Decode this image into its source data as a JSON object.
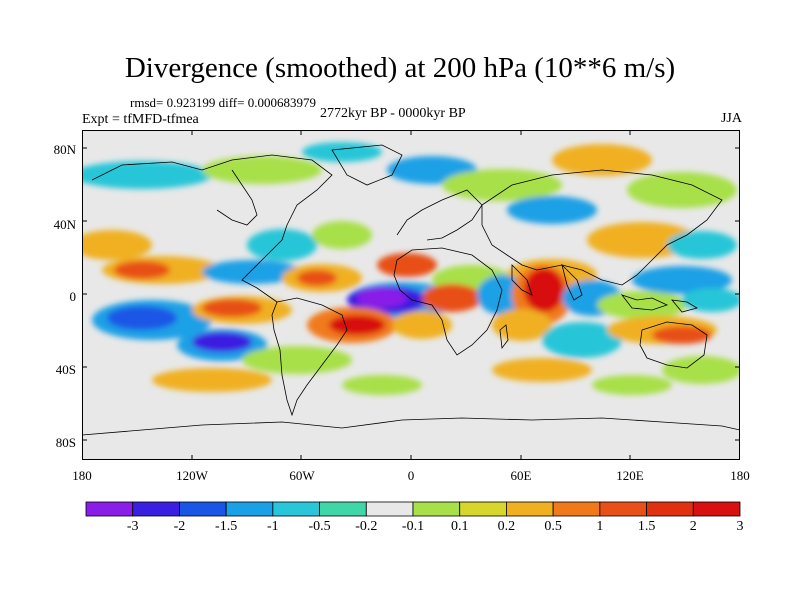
{
  "title": "Divergence (smoothed) at 200 hPa (10**6 m/s)",
  "stats": "rmsd= 0.923199 diff= 0.000683979",
  "experiment": "Expt = tfMFD-tfmea",
  "period": "2772kyr BP - 0000kyr BP",
  "season": "JJA",
  "lat_axis": [
    "80N",
    "40N",
    "0",
    "40S",
    "80S"
  ],
  "lon_axis": [
    "180",
    "120W",
    "60W",
    "0",
    "60E",
    "120E",
    "180"
  ],
  "colorbar": {
    "labels": [
      "-3",
      "-2",
      "-1.5",
      "-1",
      "-0.5",
      "-0.2",
      "-0.1",
      "0.1",
      "0.2",
      "0.5",
      "1",
      "1.5",
      "2",
      "3"
    ],
    "colors": [
      "#8a1ee8",
      "#3b1fe0",
      "#1a56e6",
      "#1aa0e6",
      "#28c6d8",
      "#3fd6a8",
      "#e8e8e8",
      "#a8e04a",
      "#d6d62c",
      "#f0b020",
      "#f07a1a",
      "#e85018",
      "#e03010",
      "#d81010"
    ]
  },
  "map_background": "#e8e8e8"
}
